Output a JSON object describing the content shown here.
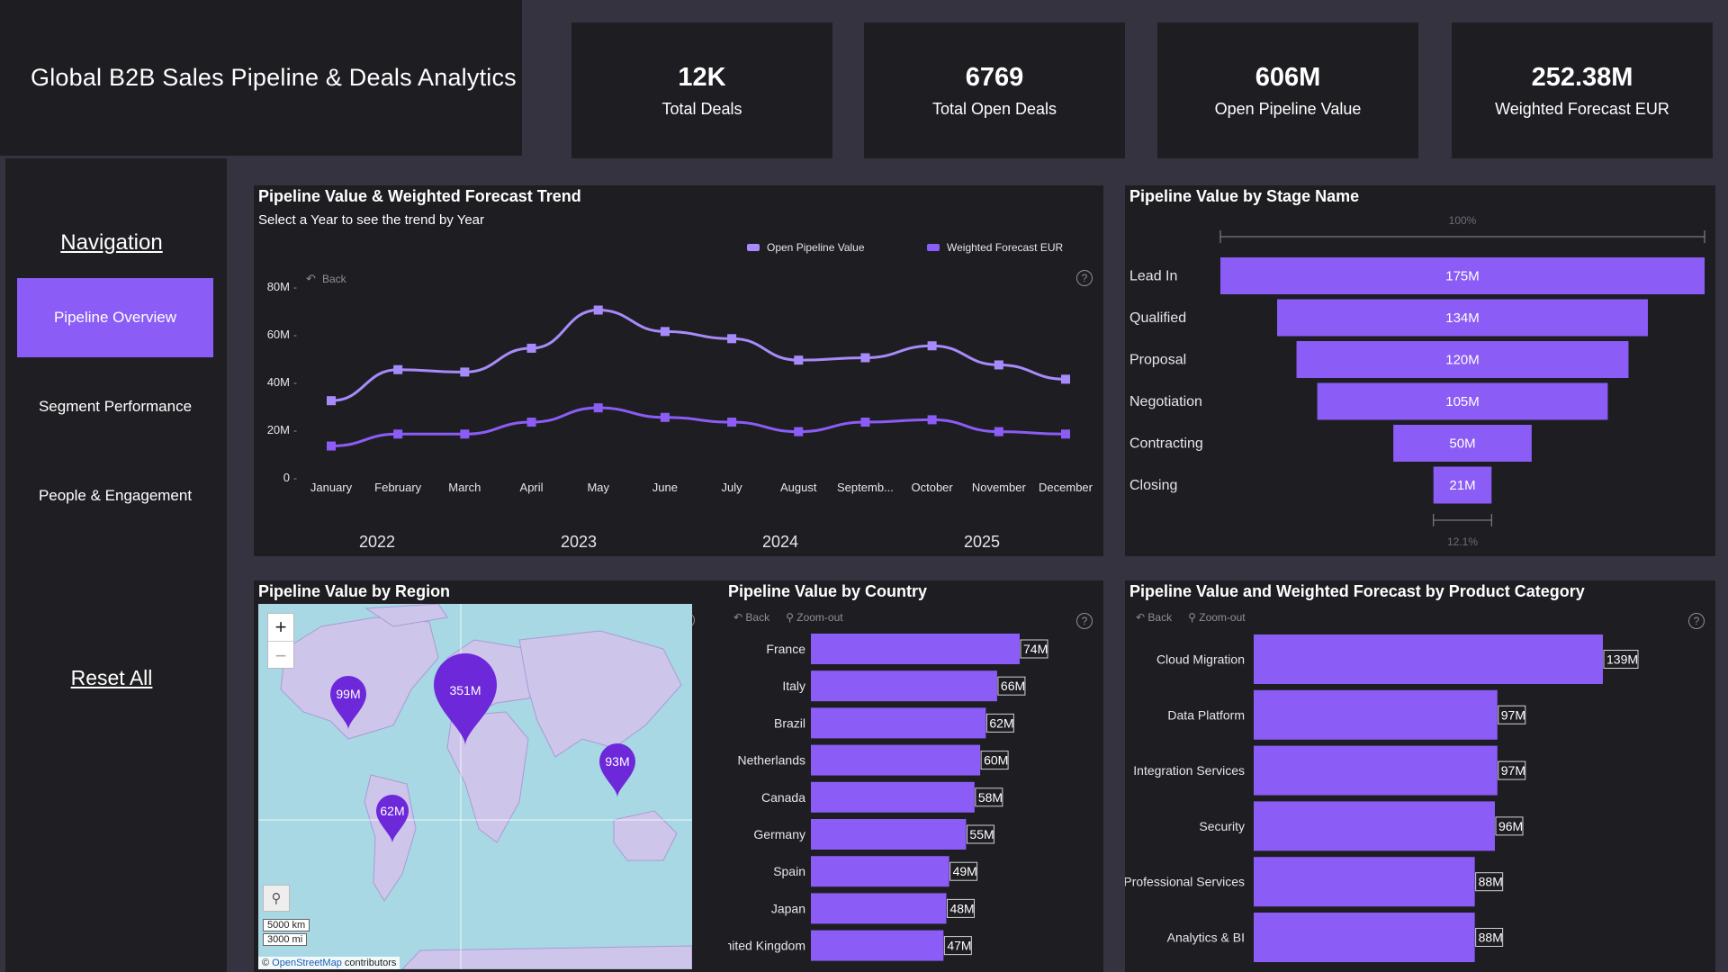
{
  "header": {
    "title": "Global B2B Sales Pipeline & Deals Analytics"
  },
  "kpis": [
    {
      "value": "12K",
      "label": "Total Deals"
    },
    {
      "value": "6769",
      "label": "Total Open Deals"
    },
    {
      "value": "606M",
      "label": "Open Pipeline Value"
    },
    {
      "value": "252.38M",
      "label": "Weighted Forecast EUR"
    }
  ],
  "nav": {
    "heading": "Navigation",
    "items": [
      "Pipeline Overview",
      "Segment Performance",
      "People & Engagement"
    ],
    "active_index": 0,
    "reset_label": "Reset All"
  },
  "toolbar": {
    "back_label": "Back",
    "zoom_out_label": "Zoom-out",
    "help_icon": "question-circle-icon"
  },
  "trend": {
    "title": "Pipeline Value & Weighted Forecast Trend",
    "subtitle": "Select  a Year to see the trend by Year",
    "year_buttons": [
      "2022",
      "2023",
      "2024",
      "2025"
    ]
  },
  "stage": {
    "title": "Pipeline Value by Stage Name",
    "top_pct": "100%",
    "bottom_pct": "12.1%"
  },
  "region": {
    "title": "Pipeline Value by Region",
    "zoom_in": "+",
    "zoom_out": "−",
    "scale_km": "5000 km",
    "scale_mi": "3000 mi",
    "attribution_prefix": "©",
    "attribution_link": "OpenStreetMap",
    "attribution_suffix": "contributors",
    "pins": [
      {
        "label": "99M",
        "region": "North America"
      },
      {
        "label": "351M",
        "region": "Europe"
      },
      {
        "label": "93M",
        "region": "Asia Pacific"
      },
      {
        "label": "62M",
        "region": "Latin America"
      }
    ]
  },
  "country": {
    "title": "Pipeline Value by Country"
  },
  "product": {
    "title": "Pipeline Value and Weighted Forecast by Product Category"
  },
  "colors": {
    "accent": "#8b5cf6",
    "accent_light": "#a78bfa",
    "panel": "#1e1e22",
    "background": "#34333f"
  },
  "chart_data": [
    {
      "type": "line",
      "title": "Pipeline Value & Weighted Forecast Trend",
      "categories": [
        "January",
        "February",
        "March",
        "April",
        "May",
        "June",
        "July",
        "August",
        "Septemb...",
        "October",
        "November",
        "December"
      ],
      "yticks": [
        "80M",
        "60M",
        "40M",
        "20M",
        "0"
      ],
      "ylim": [
        0,
        80
      ],
      "series": [
        {
          "name": "Open Pipeline Value",
          "values": [
            32,
            45,
            44,
            54,
            70,
            61,
            58,
            49,
            50,
            55,
            47,
            41
          ]
        },
        {
          "name": "Weighted Forecast EUR",
          "values": [
            13,
            18,
            18,
            23,
            29,
            25,
            23,
            19,
            23,
            24,
            19,
            18
          ]
        }
      ],
      "legend": "top-right",
      "grid": false
    },
    {
      "type": "bar",
      "title": "Pipeline Value by Stage Name",
      "categories": [
        "Lead In",
        "Qualified",
        "Proposal",
        "Negotiation",
        "Contracting",
        "Closing"
      ],
      "values": [
        175,
        134,
        120,
        105,
        50,
        21
      ],
      "labels": [
        "175M",
        "134M",
        "120M",
        "105M",
        "50M",
        "21M"
      ]
    },
    {
      "type": "bar",
      "title": "Pipeline Value by Country",
      "categories": [
        "France",
        "Italy",
        "Brazil",
        "Netherlands",
        "Canada",
        "Germany",
        "Spain",
        "Japan",
        "United Kingdom"
      ],
      "values": [
        74,
        66,
        62,
        60,
        58,
        55,
        49,
        48,
        47
      ],
      "labels": [
        "74M",
        "66M",
        "62M",
        "60M",
        "58M",
        "55M",
        "49M",
        "48M",
        "47M"
      ]
    },
    {
      "type": "bar",
      "title": "Pipeline Value and Weighted Forecast by Product Category",
      "categories": [
        "Cloud Migration",
        "Data Platform",
        "Integration Services",
        "Security",
        "Professional Services",
        "Analytics & BI"
      ],
      "values": [
        139,
        97,
        97,
        96,
        88,
        88
      ],
      "labels": [
        "139M",
        "97M",
        "97M",
        "96M",
        "88M",
        "88M"
      ]
    }
  ]
}
